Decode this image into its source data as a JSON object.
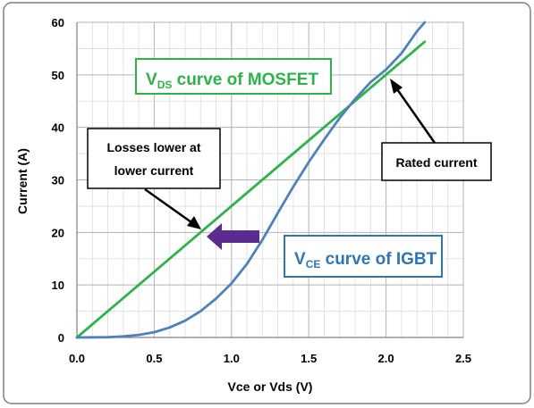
{
  "chart_data": {
    "type": "line",
    "xlabel": "Vce or Vds (V)",
    "ylabel": "Current (A)",
    "xlim": [
      0,
      2.5
    ],
    "ylim": [
      0,
      60
    ],
    "x_ticks": [
      "0.0",
      "0.5",
      "1.0",
      "1.5",
      "2.0",
      "2.5"
    ],
    "y_ticks": [
      "0",
      "10",
      "20",
      "30",
      "40",
      "50",
      "60"
    ],
    "grid": true,
    "series": [
      {
        "key": "mosfet",
        "color": "#2db34a",
        "x": [
          0,
          2.25
        ],
        "y": [
          0,
          56.3
        ]
      },
      {
        "key": "igbt",
        "color": "#4f81bd",
        "x": [
          0,
          0.2,
          0.3,
          0.4,
          0.5,
          0.6,
          0.7,
          0.8,
          0.9,
          1.0,
          1.1,
          1.2,
          1.3,
          1.4,
          1.5,
          1.6,
          1.7,
          1.8,
          1.9,
          2.0,
          2.1,
          2.2,
          2.25
        ],
        "y": [
          0,
          0.05,
          0.2,
          0.5,
          1.0,
          1.9,
          3.2,
          5.0,
          7.4,
          10.3,
          14.0,
          18.6,
          23.7,
          28.7,
          33.4,
          37.7,
          41.8,
          45.4,
          48.6,
          51.0,
          54.1,
          58.3,
          60.0
        ]
      }
    ],
    "annotations": {
      "mosfet_label": {
        "main": "V",
        "sub": "DS",
        "rest": " curve of MOSFET",
        "color": "#2db34a"
      },
      "igbt_label": {
        "main": "V",
        "sub": "CE",
        "rest": " curve of IGBT",
        "color": "#2e75b6"
      },
      "losses": {
        "lines": [
          "Losses lower at",
          "lower current"
        ]
      },
      "rated": {
        "text": "Rated current"
      },
      "thick_arrow_color": "#5b2c8e"
    }
  }
}
